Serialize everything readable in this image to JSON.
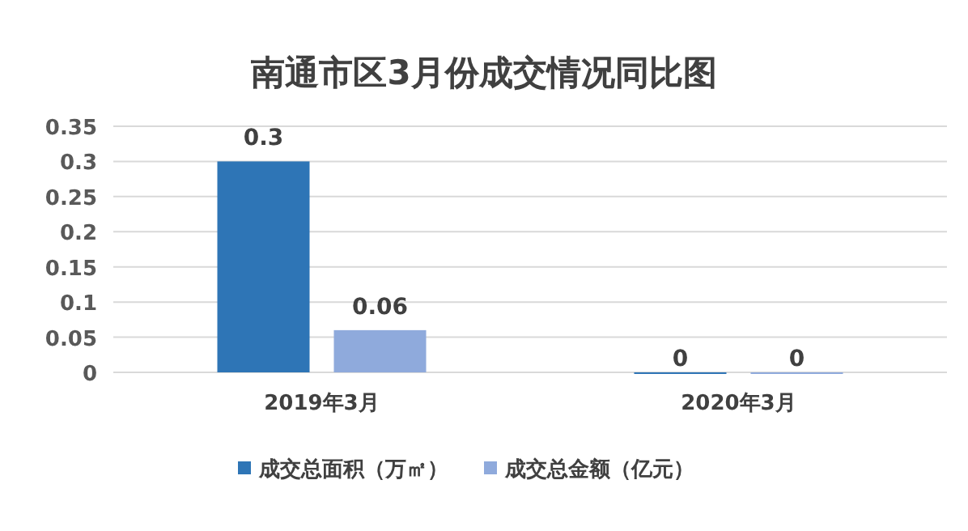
{
  "chart_data": {
    "type": "bar",
    "title": "南通市区3月份成交情况同比图",
    "categories": [
      "2019年3月",
      "2020年3月"
    ],
    "series": [
      {
        "name": "成交总面积（万㎡）",
        "color": "#2e75b6",
        "values": [
          0.3,
          0
        ]
      },
      {
        "name": "成交总金额（亿元）",
        "color": "#8faadc",
        "values": [
          0.06,
          0
        ]
      }
    ],
    "ylim": [
      0,
      0.35
    ],
    "yticks": [
      0,
      0.05,
      0.1,
      0.15,
      0.2,
      0.25,
      0.3,
      0.35
    ],
    "grid": "y",
    "legend": "bottom",
    "data_labels": true
  }
}
